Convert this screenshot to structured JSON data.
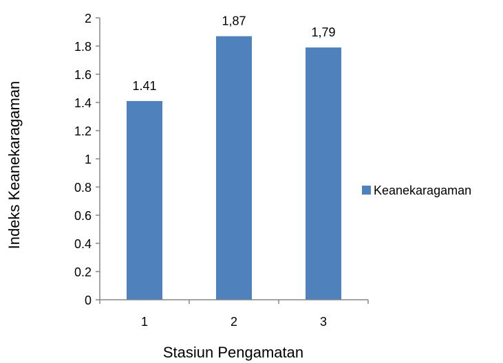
{
  "chart_data": {
    "type": "bar",
    "categories": [
      "1",
      "2",
      "3"
    ],
    "series": [
      {
        "name": "Keanekaragaman",
        "values": [
          1.41,
          1.87,
          1.79
        ],
        "color": "#4F81BD"
      }
    ],
    "data_labels": [
      "1.41",
      "1,87",
      "1,79"
    ],
    "y_ticks": [
      "0",
      "0.2",
      "0.4",
      "0.6",
      "0.8",
      "1",
      "1.2",
      "1.4",
      "1.6",
      "1.8",
      "2"
    ],
    "xlabel": "Stasiun Pengamatan",
    "ylabel": "Indeks Keanekaragaman",
    "ylim": [
      0,
      2
    ],
    "grid": false,
    "legend": {
      "position": "right",
      "entries": [
        "Keanekaragaman"
      ]
    }
  }
}
